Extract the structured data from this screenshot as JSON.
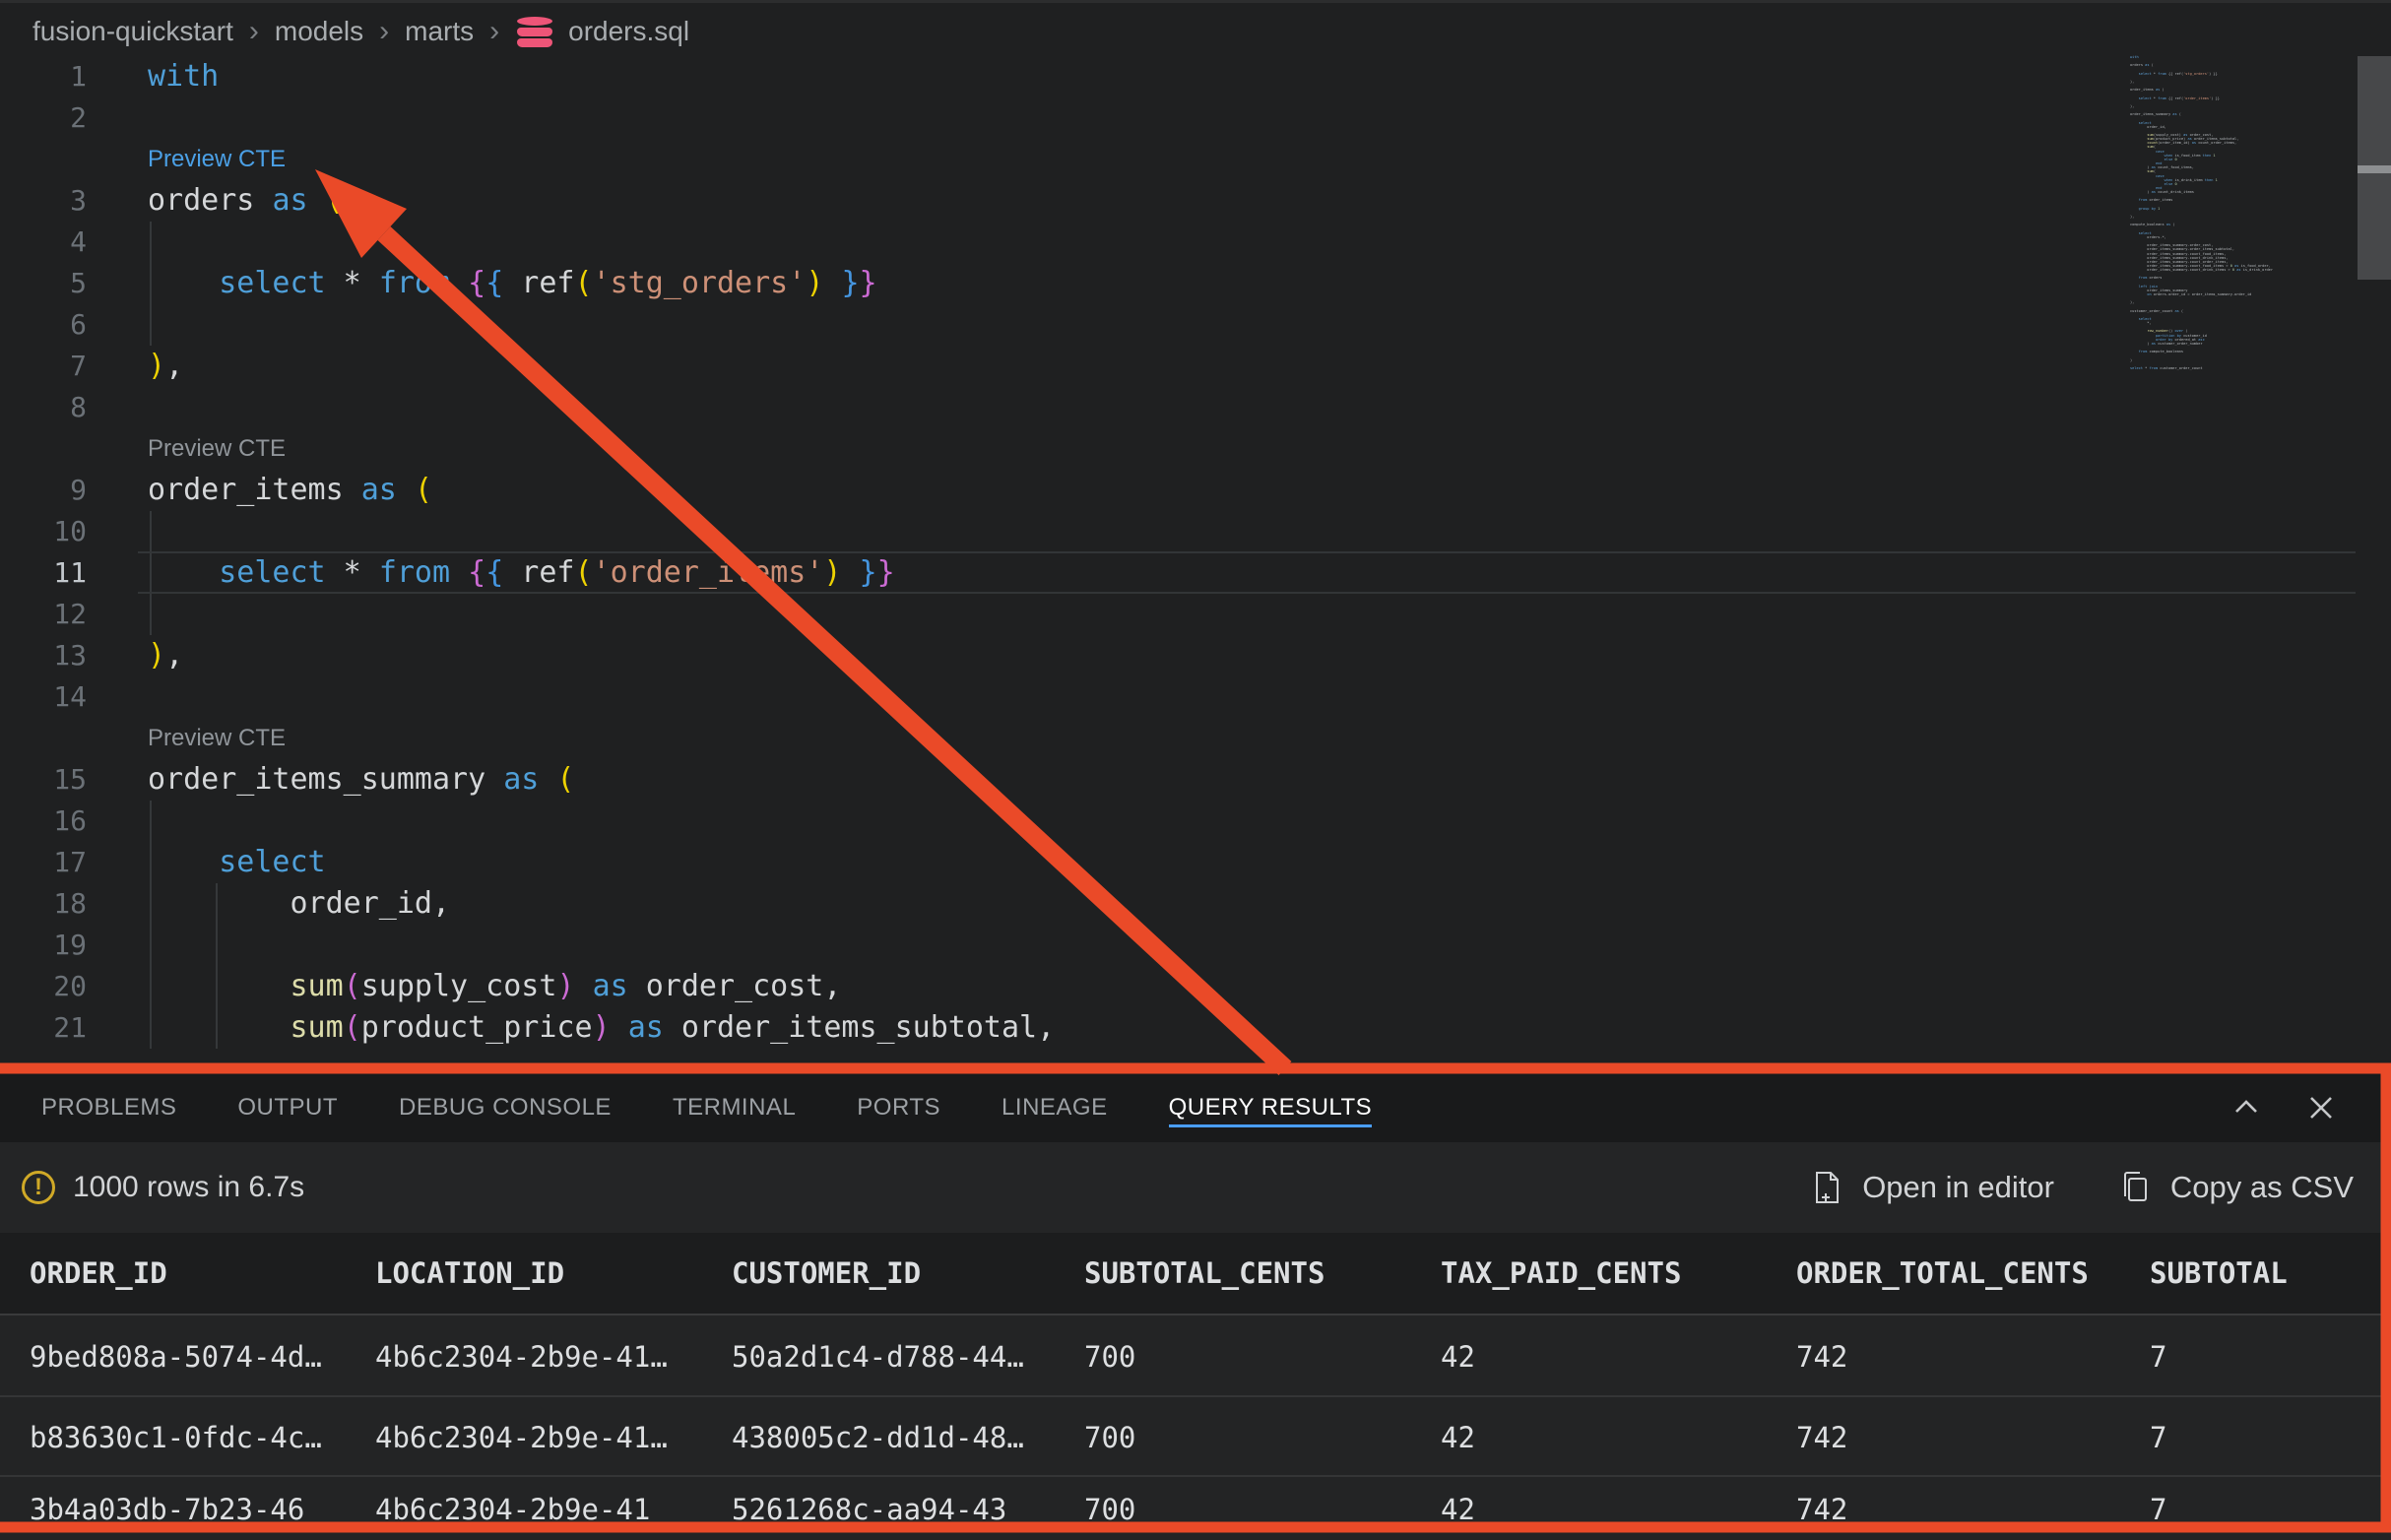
{
  "colors": {
    "annotation_orange": "#ea4a28",
    "tab_underline_blue": "#4a9eff",
    "codelens_link_blue": "#4ba0e6",
    "db_icon_pink": "#ee5578",
    "warning_yellow": "#d0a927",
    "keyword_blue": "#4f9fd8",
    "string_brown": "#cd9077",
    "bracket_yellow": "#eed202",
    "bracket_purple": "#cc6bd4"
  },
  "breadcrumb": {
    "separator": "›",
    "items": [
      "fusion-quickstart",
      "models",
      "marts"
    ],
    "file_icon": "database-icon",
    "file": "orders.sql"
  },
  "editor": {
    "codelens_label": "Preview CTE",
    "slots": [
      {
        "kind": "code",
        "num": "1",
        "tokens": [
          [
            "kw",
            "with"
          ]
        ]
      },
      {
        "kind": "code",
        "num": "2",
        "tokens": []
      },
      {
        "kind": "lens",
        "link": true
      },
      {
        "kind": "code",
        "num": "3",
        "tokens": [
          [
            "pl",
            "orders "
          ],
          [
            "kw",
            "as"
          ],
          [
            "pl",
            " "
          ],
          [
            "b1",
            "("
          ]
        ]
      },
      {
        "kind": "code",
        "num": "4",
        "tokens": []
      },
      {
        "kind": "code",
        "num": "5",
        "tokens": [
          [
            "pl",
            "    "
          ],
          [
            "kw",
            "select"
          ],
          [
            "pl",
            " * "
          ],
          [
            "kw",
            "from"
          ],
          [
            "pl",
            " "
          ],
          [
            "b2",
            "{"
          ],
          [
            "b3",
            "{"
          ],
          [
            "pl",
            " ref"
          ],
          [
            "b1",
            "("
          ],
          [
            "st",
            "'stg_orders'"
          ],
          [
            "b1",
            ")"
          ],
          [
            "pl",
            " "
          ],
          [
            "b3",
            "}"
          ],
          [
            "b2",
            "}"
          ]
        ]
      },
      {
        "kind": "code",
        "num": "6",
        "tokens": []
      },
      {
        "kind": "code",
        "num": "7",
        "tokens": [
          [
            "b1",
            ")"
          ],
          [
            "pl",
            ","
          ]
        ]
      },
      {
        "kind": "code",
        "num": "8",
        "tokens": []
      },
      {
        "kind": "lens",
        "link": false
      },
      {
        "kind": "code",
        "num": "9",
        "tokens": [
          [
            "pl",
            "order_items "
          ],
          [
            "kw",
            "as"
          ],
          [
            "pl",
            " "
          ],
          [
            "b1",
            "("
          ]
        ]
      },
      {
        "kind": "code",
        "num": "10",
        "tokens": []
      },
      {
        "kind": "code",
        "num": "11",
        "current": true,
        "tokens": [
          [
            "pl",
            "    "
          ],
          [
            "kw",
            "select"
          ],
          [
            "pl",
            " * "
          ],
          [
            "kw",
            "from"
          ],
          [
            "pl",
            " "
          ],
          [
            "b2",
            "{"
          ],
          [
            "b3",
            "{"
          ],
          [
            "pl",
            " ref"
          ],
          [
            "b1",
            "("
          ],
          [
            "st",
            "'order_items'"
          ],
          [
            "b1",
            ")"
          ],
          [
            "pl",
            " "
          ],
          [
            "b3",
            "}"
          ],
          [
            "b2",
            "}"
          ]
        ]
      },
      {
        "kind": "code",
        "num": "12",
        "tokens": []
      },
      {
        "kind": "code",
        "num": "13",
        "tokens": [
          [
            "b1",
            ")"
          ],
          [
            "pl",
            ","
          ]
        ]
      },
      {
        "kind": "code",
        "num": "14",
        "tokens": []
      },
      {
        "kind": "lens",
        "link": false
      },
      {
        "kind": "code",
        "num": "15",
        "tokens": [
          [
            "pl",
            "order_items_summary "
          ],
          [
            "kw",
            "as"
          ],
          [
            "pl",
            " "
          ],
          [
            "b1",
            "("
          ]
        ]
      },
      {
        "kind": "code",
        "num": "16",
        "tokens": []
      },
      {
        "kind": "code",
        "num": "17",
        "tokens": [
          [
            "pl",
            "    "
          ],
          [
            "kw",
            "select"
          ]
        ]
      },
      {
        "kind": "code",
        "num": "18",
        "tokens": [
          [
            "pl",
            "        order_id,"
          ]
        ]
      },
      {
        "kind": "code",
        "num": "19",
        "tokens": []
      },
      {
        "kind": "code",
        "num": "20",
        "tokens": [
          [
            "pl",
            "        "
          ],
          [
            "fn",
            "sum"
          ],
          [
            "b2",
            "("
          ],
          [
            "pl",
            "supply_cost"
          ],
          [
            "b2",
            ")"
          ],
          [
            "pl",
            " "
          ],
          [
            "kw",
            "as"
          ],
          [
            "pl",
            " order_cost,"
          ]
        ]
      },
      {
        "kind": "code",
        "num": "21",
        "tokens": [
          [
            "pl",
            "        "
          ],
          [
            "fn",
            "sum"
          ],
          [
            "b2",
            "("
          ],
          [
            "pl",
            "product_price"
          ],
          [
            "b2",
            ")"
          ],
          [
            "pl",
            " "
          ],
          [
            "kw",
            "as"
          ],
          [
            "pl",
            " order_items_subtotal,"
          ]
        ]
      }
    ]
  },
  "minimap": {
    "lines": [
      "with",
      "",
      "orders as (",
      "",
      "    select * from {{ ref('stg_orders') }}",
      "",
      "),",
      "",
      "order_items as (",
      "",
      "    select * from {{ ref('order_items') }}",
      "",
      "),",
      "",
      "order_items_summary as (",
      "",
      "    select",
      "        order_id,",
      "",
      "        sum(supply_cost) as order_cost,",
      "        sum(product_price) as order_items_subtotal,",
      "        count(order_item_id) as count_order_items,",
      "        sum(",
      "            case",
      "                when is_food_item then 1",
      "                else 0",
      "            end",
      "        ) as count_food_items,",
      "        sum(",
      "            case",
      "                when is_drink_item then 1",
      "                else 0",
      "            end",
      "        ) as count_drink_items",
      "",
      "    from order_items",
      "",
      "    group by 1",
      "",
      "),",
      "",
      "compute_booleans as (",
      "",
      "    select",
      "        orders.*,",
      "",
      "        order_items_summary.order_cost,",
      "        order_items_summary.order_items_subtotal,",
      "        order_items_summary.count_food_items,",
      "        order_items_summary.count_drink_items,",
      "        order_items_summary.count_order_items,",
      "        order_items_summary.count_food_items > 0 as is_food_order,",
      "        order_items_summary.count_drink_items > 0 as is_drink_order",
      "",
      "    from orders",
      "",
      "    left join",
      "        order_items_summary",
      "        on orders.order_id = order_items_summary.order_id",
      "",
      "),",
      "",
      "customer_order_count as (",
      "",
      "    select",
      "        *,",
      "",
      "        row_number() over (",
      "            partition by customer_id",
      "            order by ordered_at asc",
      "        ) as customer_order_number",
      "",
      "    from compute_booleans",
      "",
      ")",
      "",
      "select * from customer_order_count"
    ]
  },
  "panel": {
    "tabs": [
      {
        "label": "PROBLEMS",
        "active": false
      },
      {
        "label": "OUTPUT",
        "active": false
      },
      {
        "label": "DEBUG CONSOLE",
        "active": false
      },
      {
        "label": "TERMINAL",
        "active": false
      },
      {
        "label": "PORTS",
        "active": false
      },
      {
        "label": "LINEAGE",
        "active": false
      },
      {
        "label": "QUERY RESULTS",
        "active": true
      }
    ],
    "window_actions": [
      "chevron-up-icon",
      "close-icon"
    ],
    "status": {
      "icon": "warning-icon",
      "text": "1000 rows in 6.7s"
    },
    "actions": [
      {
        "icon": "file-plus-icon",
        "label": "Open in editor"
      },
      {
        "icon": "copy-icon",
        "label": "Copy as CSV"
      }
    ],
    "table": {
      "headers": [
        "ORDER_ID",
        "LOCATION_ID",
        "CUSTOMER_ID",
        "SUBTOTAL_CENTS",
        "TAX_PAID_CENTS",
        "ORDER_TOTAL_CENTS",
        "SUBTOTAL"
      ],
      "rows": [
        [
          "9bed808a-5074-4d…",
          "4b6c2304-2b9e-41…",
          "50a2d1c4-d788-44…",
          "700",
          "42",
          "742",
          "7"
        ],
        [
          "b83630c1-0fdc-4c…",
          "4b6c2304-2b9e-41…",
          "438005c2-dd1d-48…",
          "700",
          "42",
          "742",
          "7"
        ],
        [
          "3b4a03db-7b23-46",
          "4b6c2304-2b9e-41",
          "5261268c-aa94-43",
          "700",
          "42",
          "742",
          "7"
        ]
      ]
    }
  }
}
